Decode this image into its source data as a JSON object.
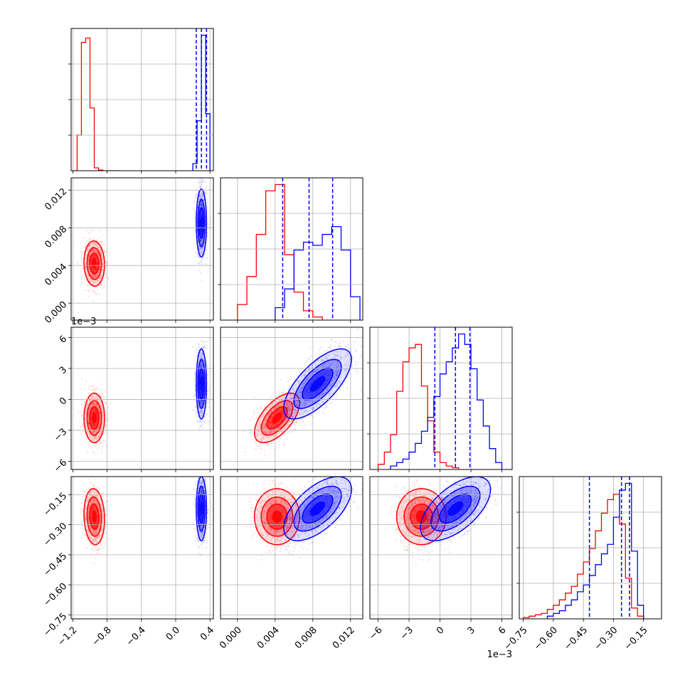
{
  "chart_data": {
    "type": "corner",
    "grid": true,
    "parameters": [
      {
        "ticks": [
          "−1.2",
          "−0.8",
          "−0.4",
          "0.0",
          "0.4"
        ],
        "tick_values": [
          -1.2,
          -0.8,
          -0.4,
          0.0,
          0.4
        ],
        "range": [
          -1.22,
          0.44
        ]
      },
      {
        "ticks": [
          "0.000",
          "0.004",
          "0.008",
          "0.012"
        ],
        "tick_values": [
          0.0,
          0.004,
          0.008,
          0.012
        ],
        "range": [
          -0.0018,
          0.0133
        ]
      },
      {
        "ticks": [
          "−6",
          "−3",
          "0",
          "3",
          "6"
        ],
        "tick_values": [
          -6,
          -3,
          0,
          3,
          6
        ],
        "range": [
          -6.8,
          7.0
        ],
        "offset_text": "1e−3"
      },
      {
        "ticks": [
          "−0.75",
          "−0.60",
          "−0.45",
          "−0.30",
          "−0.15"
        ],
        "tick_values": [
          -0.75,
          -0.6,
          -0.45,
          -0.3,
          -0.15
        ],
        "range": [
          -0.77,
          -0.06
        ]
      }
    ],
    "series": [
      {
        "color": "#ff0000",
        "means": [
          -0.95,
          0.0042,
          -1.8,
          -0.26
        ],
        "stds": [
          0.06,
          0.0012,
          1.2,
          0.07
        ],
        "correlations": [
          [
            1,
            -0.05,
            0.0,
            -0.1
          ],
          [
            -0.05,
            1,
            0.6,
            0.0
          ],
          [
            0.0,
            0.6,
            1,
            0.0
          ],
          [
            -0.1,
            0.0,
            0.0,
            1
          ]
        ],
        "histograms": [
          {
            "edges": [
              -1.2,
              -1.15,
              -1.1,
              -1.05,
              -1.0,
              -0.95,
              -0.9,
              -0.85,
              -0.8,
              -0.75,
              -0.7,
              -0.65
            ],
            "counts": [
              0.0,
              0.25,
              0.9,
              0.93,
              0.44,
              0.02,
              0.005,
              0.0,
              0.0,
              0.0,
              0.0
            ]
          },
          {
            "edges": [
              0.0,
              0.001,
              0.002,
              0.003,
              0.004,
              0.005,
              0.006,
              0.007,
              0.008,
              0.009
            ],
            "counts": [
              0.1,
              0.28,
              0.55,
              0.83,
              0.87,
              0.42,
              0.18,
              0.06,
              0.02
            ]
          },
          {
            "edges": [
              -6.0,
              -5.4,
              -4.8,
              -4.2,
              -3.6,
              -3.0,
              -2.4,
              -1.8,
              -1.2,
              -0.6,
              0.0,
              0.6,
              1.2,
              1.8
            ],
            "counts": [
              0.03,
              0.1,
              0.2,
              0.45,
              0.62,
              0.7,
              0.72,
              0.48,
              0.28,
              0.1,
              0.04,
              0.02,
              0.01
            ]
          },
          {
            "edges": [
              -0.75,
              -0.72,
              -0.69,
              -0.66,
              -0.63,
              -0.6,
              -0.57,
              -0.54,
              -0.51,
              -0.48,
              -0.45,
              -0.42,
              -0.39,
              -0.36,
              -0.33,
              -0.3,
              -0.27,
              -0.24,
              -0.21,
              -0.18,
              -0.15
            ],
            "counts": [
              0.01,
              0.02,
              0.03,
              0.04,
              0.07,
              0.1,
              0.14,
              0.19,
              0.24,
              0.33,
              0.42,
              0.52,
              0.65,
              0.78,
              0.88,
              0.92,
              0.7,
              0.3,
              0.08,
              0.02
            ]
          }
        ]
      },
      {
        "color": "#0000ff",
        "means": [
          0.3,
          0.0085,
          1.5,
          -0.22
        ],
        "stds": [
          0.03,
          0.0018,
          1.7,
          0.08
        ],
        "correlations": [
          [
            1,
            0.0,
            0.0,
            0.0
          ],
          [
            0.0,
            1,
            0.7,
            0.6
          ],
          [
            0.0,
            0.7,
            1,
            0.6
          ],
          [
            0.0,
            0.6,
            0.6,
            1
          ]
        ],
        "histograms": [
          {
            "edges": [
              0.2,
              0.25,
              0.3,
              0.35,
              0.4
            ],
            "counts": [
              0.05,
              0.35,
              0.95,
              0.4
            ]
          },
          {
            "edges": [
              0.004,
              0.005,
              0.006,
              0.007,
              0.008,
              0.009,
              0.01,
              0.011,
              0.012,
              0.013
            ],
            "counts": [
              0.08,
              0.2,
              0.45,
              0.5,
              0.48,
              0.55,
              0.6,
              0.45,
              0.15
            ]
          },
          {
            "edges": [
              -4.8,
              -4.2,
              -3.6,
              -3.0,
              -2.4,
              -1.8,
              -1.2,
              -0.6,
              0.0,
              0.6,
              1.2,
              1.8,
              2.4,
              3.0,
              3.6,
              4.2,
              4.8,
              5.4,
              6.0
            ],
            "counts": [
              0.02,
              0.04,
              0.06,
              0.1,
              0.15,
              0.22,
              0.3,
              0.42,
              0.55,
              0.62,
              0.7,
              0.78,
              0.72,
              0.58,
              0.4,
              0.25,
              0.12,
              0.04
            ]
          },
          {
            "edges": [
              -0.63,
              -0.6,
              -0.57,
              -0.54,
              -0.51,
              -0.48,
              -0.45,
              -0.42,
              -0.39,
              -0.36,
              -0.33,
              -0.3,
              -0.27,
              -0.24,
              -0.21,
              -0.18,
              -0.15
            ],
            "counts": [
              0.02,
              0.04,
              0.06,
              0.1,
              0.14,
              0.2,
              0.25,
              0.32,
              0.4,
              0.48,
              0.55,
              0.75,
              0.95,
              1.0,
              0.5,
              0.1
            ]
          }
        ],
        "quantile_lines": [
          [
            0.24,
            0.3,
            0.36
          ],
          [
            0.0048,
            0.0076,
            0.0101
          ],
          [
            -0.5,
            1.5,
            2.9
          ],
          [
            -0.42,
            -0.26,
            -0.22
          ]
        ]
      }
    ]
  }
}
